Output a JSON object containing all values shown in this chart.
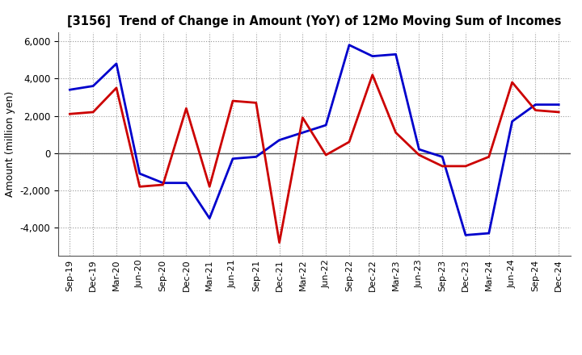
{
  "title": "[3156]  Trend of Change in Amount (YoY) of 12Mo Moving Sum of Incomes",
  "ylabel": "Amount (million yen)",
  "x_labels": [
    "Sep-19",
    "Dec-19",
    "Mar-20",
    "Jun-20",
    "Sep-20",
    "Dec-20",
    "Mar-21",
    "Jun-21",
    "Sep-21",
    "Dec-21",
    "Mar-22",
    "Jun-22",
    "Sep-22",
    "Dec-22",
    "Mar-23",
    "Jun-23",
    "Sep-23",
    "Dec-23",
    "Mar-24",
    "Jun-24",
    "Sep-24",
    "Dec-24"
  ],
  "ordinary_income": [
    3400,
    3600,
    4800,
    -1100,
    -1600,
    -1600,
    -3500,
    -300,
    -200,
    700,
    1100,
    1500,
    5800,
    5200,
    5300,
    200,
    -200,
    -4400,
    -4300,
    1700,
    2600,
    2600
  ],
  "net_income": [
    2100,
    2200,
    3500,
    -1800,
    -1700,
    2400,
    -1800,
    2800,
    2700,
    -4800,
    1900,
    -100,
    600,
    4200,
    1100,
    -100,
    -700,
    -700,
    -200,
    3800,
    2300,
    2200
  ],
  "ordinary_color": "#0000cc",
  "net_color": "#cc0000",
  "ylim": [
    -5500,
    6500
  ],
  "yticks": [
    -4000,
    -2000,
    0,
    2000,
    4000,
    6000
  ],
  "background_color": "#ffffff",
  "grid_color": "#999999",
  "linewidth": 2.0
}
